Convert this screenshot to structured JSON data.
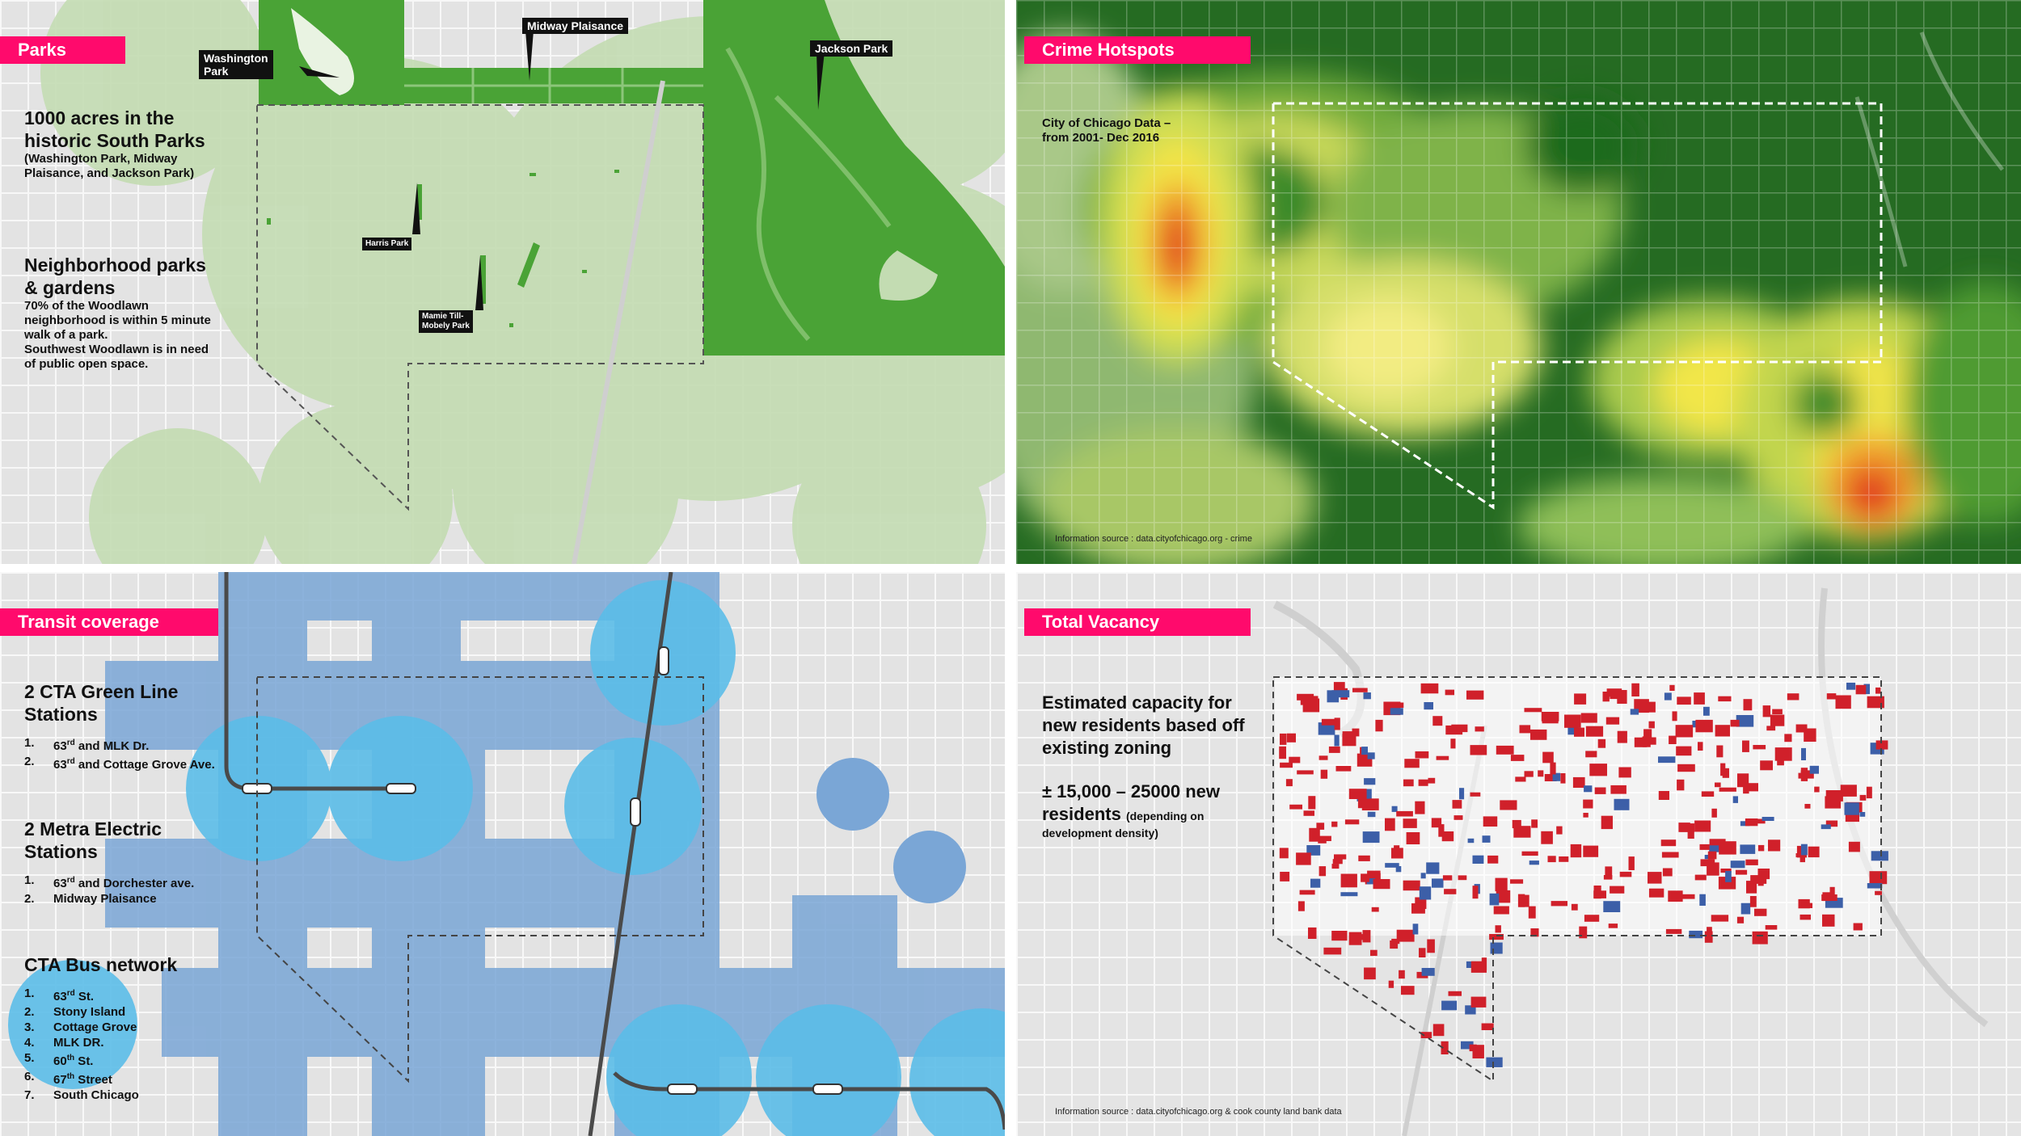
{
  "parks": {
    "tag": "Parks",
    "heading1_l1": "1000 acres in the",
    "heading1_l2": "historic South Parks",
    "sub1_l1": "(Washington Park, Midway",
    "sub1_l2": "Plaisance, and Jackson Park)",
    "heading2_l1": "Neighborhood parks",
    "heading2_l2": "& gardens",
    "body_l1": "70% of the Woodlawn",
    "body_l2": "neighborhood is within 5 minute",
    "body_l3": "walk of a park.",
    "body_l4": "Southwest Woodlawn is in need",
    "body_l5": "of public open space.",
    "callout_washington_l1": "Washington",
    "callout_washington_l2": "Park",
    "callout_midway": "Midway Plaisance",
    "callout_jackson": "Jackson Park",
    "callout_harris": "Harris Park",
    "callout_mamie_l1": "Mamie Till-",
    "callout_mamie_l2": "Mobely Park",
    "colors": {
      "park": "#4aa336",
      "coverage": "#c3dcb2"
    }
  },
  "crime": {
    "tag": "Crime Hotspots",
    "source_l1": "City of Chicago Data –",
    "source_l2": "from 2001- Dec 2016",
    "info": "Information source : data.cityofchicago.org - crime",
    "colors": {
      "low": "#1f6b1c",
      "mid": "#f2e64a",
      "high": "#e02a1c"
    }
  },
  "transit": {
    "tag": "Transit coverage",
    "green_heading_l1": "2 CTA Green Line",
    "green_heading_l2": "Stations",
    "green_items": [
      {
        "num": "1.",
        "pre": "63",
        "sup": "rd",
        "post": " and MLK Dr."
      },
      {
        "num": "2.",
        "pre": "63",
        "sup": "rd",
        "post": " and Cottage Grove Ave."
      }
    ],
    "metra_heading_l1": "2 Metra Electric",
    "metra_heading_l2": "Stations",
    "metra_items": [
      {
        "num": "1.",
        "pre": "63",
        "sup": "rd",
        "post": " and Dorchester ave."
      },
      {
        "num": "2.",
        "pre": "Midway Plaisance",
        "sup": "",
        "post": ""
      }
    ],
    "bus_heading": "CTA Bus network",
    "bus_items": [
      {
        "num": "1.",
        "pre": "63",
        "sup": "rd",
        "post": " St."
      },
      {
        "num": "2.",
        "pre": "Stony Island",
        "sup": "",
        "post": ""
      },
      {
        "num": "3.",
        "pre": "Cottage Grove",
        "sup": "",
        "post": ""
      },
      {
        "num": "4.",
        "pre": "MLK DR.",
        "sup": "",
        "post": ""
      },
      {
        "num": "5.",
        "pre": "60",
        "sup": "th",
        "post": " St."
      },
      {
        "num": "6.",
        "pre": "67",
        "sup": "th",
        "post": " Street"
      },
      {
        "num": "7.",
        "pre": "South Chicago",
        "sup": "",
        "post": ""
      }
    ],
    "colors": {
      "bus": "#7aa6d6",
      "station": "#5bbde8"
    }
  },
  "vacancy": {
    "tag": "Total Vacancy",
    "heading_l1": "Estimated capacity for",
    "heading_l2": "new residents based off",
    "heading_l3": "existing zoning",
    "range_l1": "± 15,000 – 25000 new",
    "range_l2": "residents",
    "range_note": "(depending on",
    "range_note_l2": "development density)",
    "info": "Information source : data.cityofchicago.org & cook county land bank data",
    "colors": {
      "vacant": "#d0202a",
      "other": "#3c5fa8"
    }
  }
}
